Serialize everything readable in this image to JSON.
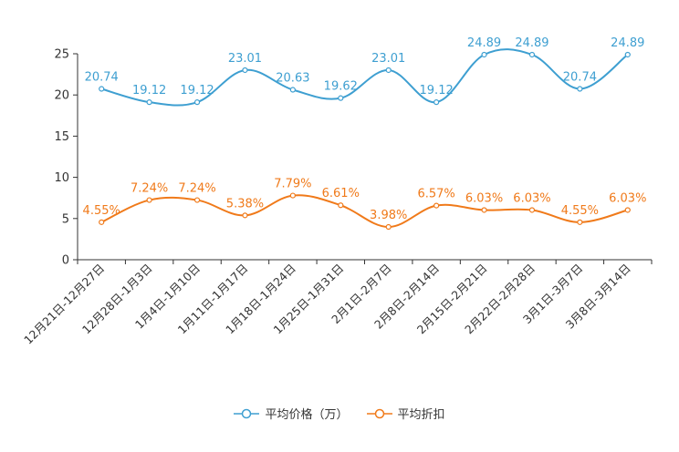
{
  "chart_data": {
    "type": "line",
    "categories": [
      "12月21日-12月27日",
      "12月28日-1月3日",
      "1月4日-1月10日",
      "1月11日-1月17日",
      "1月18日-1月24日",
      "1月25日-1月31日",
      "2月1日-2月7日",
      "2月8日-2月14日",
      "2月15日-2月21日",
      "2月22日-2月28日",
      "3月1日-3月7日",
      "3月8日-3月14日"
    ],
    "ylim": [
      0,
      25
    ],
    "yticks": [
      0,
      5,
      10,
      15,
      20,
      25
    ],
    "series": [
      {
        "name": "平均价格（万）",
        "color": "#3e9fd1",
        "values": [
          20.74,
          19.12,
          19.12,
          23.01,
          20.63,
          19.62,
          23.01,
          19.12,
          24.89,
          24.89,
          20.74,
          24.89
        ],
        "labels": [
          "20.74",
          "19.12",
          "19.12",
          "23.01",
          "20.63",
          "19.62",
          "23.01",
          "19.12",
          "24.89",
          "24.89",
          "20.74",
          "24.89"
        ]
      },
      {
        "name": "平均折扣",
        "color": "#f07a1a",
        "values": [
          4.55,
          7.24,
          7.24,
          5.38,
          7.79,
          6.61,
          3.98,
          6.57,
          6.03,
          6.03,
          4.55,
          6.03
        ],
        "labels": [
          "4.55%",
          "7.24%",
          "7.24%",
          "5.38%",
          "7.79%",
          "6.61%",
          "3.98%",
          "6.57%",
          "6.03%",
          "6.03%",
          "4.55%",
          "6.03%"
        ]
      }
    ],
    "legend": [
      "平均价格（万）",
      "平均折扣"
    ],
    "legend_position": "bottom",
    "grid": false
  }
}
